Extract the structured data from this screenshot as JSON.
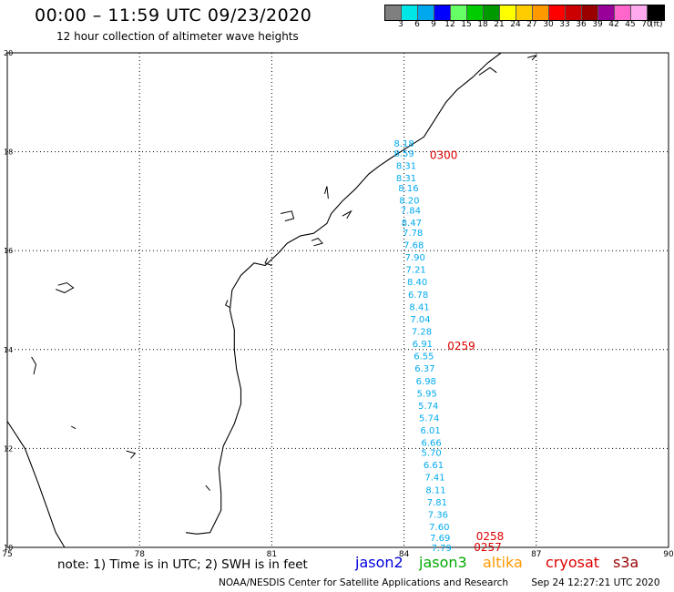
{
  "header": {
    "title": "00:00 – 11:59 UTC 09/23/2020",
    "subtitle": "12 hour collection of altimeter wave heights"
  },
  "legend": {
    "unit": "(ft)",
    "labels": [
      "3",
      "6",
      "9",
      "12",
      "15",
      "18",
      "21",
      "24",
      "27",
      "30",
      "33",
      "36",
      "39",
      "42",
      "45",
      "70"
    ],
    "colors": [
      "#7f7f7f",
      "#00e5e5",
      "#00a8f0",
      "#0000ff",
      "#66ff66",
      "#00cc00",
      "#009900",
      "#ffff00",
      "#ffcc00",
      "#ff9900",
      "#ff0000",
      "#cc0000",
      "#990000",
      "#990099",
      "#ff66cc",
      "#ffaaee",
      "#000000"
    ]
  },
  "map": {
    "lon_range": [
      75,
      90
    ],
    "lat_range": [
      10,
      20
    ],
    "lon_ticks": [
      "75",
      "78",
      "81",
      "84",
      "87",
      "90"
    ],
    "lat_ticks": [
      "20",
      "18",
      "16",
      "14",
      "12",
      "10"
    ],
    "grid": "dotted",
    "colors": {
      "coast": "#000000",
      "heights": "#00aaee",
      "times": "#dd0000",
      "grid": "#000000"
    },
    "coastline": [
      [
        86.2,
        20.0
      ],
      [
        85.9,
        19.8
      ],
      [
        85.55,
        19.5
      ],
      [
        85.2,
        19.25
      ],
      [
        84.95,
        19.0
      ],
      [
        84.7,
        18.65
      ],
      [
        84.45,
        18.3
      ],
      [
        84.1,
        18.1
      ],
      [
        83.75,
        17.9
      ],
      [
        83.45,
        17.72
      ],
      [
        83.2,
        17.55
      ],
      [
        82.9,
        17.25
      ],
      [
        82.6,
        17.0
      ],
      [
        82.35,
        16.75
      ],
      [
        82.25,
        16.55
      ],
      [
        81.95,
        16.35
      ],
      [
        81.65,
        16.3
      ],
      [
        81.35,
        16.15
      ],
      [
        81.15,
        15.95
      ],
      [
        80.85,
        15.7
      ],
      [
        80.6,
        15.75
      ],
      [
        80.3,
        15.5
      ],
      [
        80.1,
        15.2
      ],
      [
        80.05,
        14.8
      ],
      [
        80.15,
        14.4
      ],
      [
        80.15,
        14.0
      ],
      [
        80.2,
        13.6
      ],
      [
        80.3,
        13.2
      ],
      [
        80.3,
        12.9
      ],
      [
        80.15,
        12.5
      ],
      [
        79.9,
        12.05
      ],
      [
        79.8,
        11.6
      ],
      [
        79.85,
        11.1
      ],
      [
        79.85,
        10.75
      ],
      [
        79.6,
        10.3
      ],
      [
        79.3,
        10.27
      ],
      [
        79.05,
        10.3
      ]
    ],
    "west_coastline": [
      [
        75.0,
        12.55
      ],
      [
        75.4,
        12.0
      ],
      [
        75.7,
        11.3
      ],
      [
        75.9,
        10.8
      ],
      [
        76.1,
        10.3
      ],
      [
        76.3,
        10.0
      ]
    ],
    "islands": [
      [
        [
          76.15,
          15.3
        ],
        [
          76.35,
          15.35
        ],
        [
          76.5,
          15.25
        ],
        [
          76.3,
          15.15
        ],
        [
          76.1,
          15.22
        ]
      ],
      [
        [
          82.2,
          17.15
        ],
        [
          82.25,
          17.3
        ],
        [
          82.28,
          17.05
        ]
      ],
      [
        [
          81.2,
          16.75
        ],
        [
          81.45,
          16.8
        ],
        [
          81.5,
          16.65
        ],
        [
          81.3,
          16.6
        ]
      ],
      [
        [
          81.9,
          16.2
        ],
        [
          82.05,
          16.25
        ],
        [
          82.15,
          16.15
        ],
        [
          81.95,
          16.1
        ]
      ],
      [
        [
          82.6,
          16.7
        ],
        [
          82.8,
          16.8
        ],
        [
          82.7,
          16.65
        ]
      ],
      [
        [
          80.9,
          15.85
        ],
        [
          80.85,
          15.75
        ],
        [
          81.0,
          15.7
        ]
      ],
      [
        [
          80.0,
          15.0
        ],
        [
          79.95,
          14.9
        ],
        [
          80.05,
          14.85
        ]
      ],
      [
        [
          75.55,
          13.85
        ],
        [
          75.65,
          13.7
        ],
        [
          75.6,
          13.5
        ]
      ],
      [
        [
          77.7,
          11.95
        ],
        [
          77.9,
          11.9
        ],
        [
          77.8,
          11.8
        ]
      ],
      [
        [
          76.45,
          12.45
        ],
        [
          76.55,
          12.4
        ]
      ],
      [
        [
          79.5,
          11.25
        ],
        [
          79.6,
          11.15
        ]
      ],
      [
        [
          85.7,
          19.55
        ],
        [
          85.95,
          19.7
        ],
        [
          86.1,
          19.6
        ]
      ],
      [
        [
          86.8,
          19.9
        ],
        [
          87.0,
          19.95
        ],
        [
          86.9,
          19.85
        ]
      ]
    ]
  },
  "track": {
    "heights": [
      {
        "lon": 84.0,
        "lat": 18.1,
        "text": "8.18"
      },
      {
        "lon": 84.0,
        "lat": 17.9,
        "text": "8.59"
      },
      {
        "lon": 84.05,
        "lat": 17.65,
        "text": "8.31"
      },
      {
        "lon": 84.05,
        "lat": 17.4,
        "text": "8.31"
      },
      {
        "lon": 84.1,
        "lat": 17.2,
        "text": "8.16"
      },
      {
        "lon": 84.12,
        "lat": 16.95,
        "text": "8.20"
      },
      {
        "lon": 84.15,
        "lat": 16.75,
        "text": "7.84"
      },
      {
        "lon": 84.17,
        "lat": 16.5,
        "text": "8.47"
      },
      {
        "lon": 84.2,
        "lat": 16.3,
        "text": "7.78"
      },
      {
        "lon": 84.22,
        "lat": 16.05,
        "text": "7.68"
      },
      {
        "lon": 84.25,
        "lat": 15.8,
        "text": "7.90"
      },
      {
        "lon": 84.27,
        "lat": 15.55,
        "text": "7.21"
      },
      {
        "lon": 84.3,
        "lat": 15.3,
        "text": "8.40"
      },
      {
        "lon": 84.32,
        "lat": 15.05,
        "text": "6.78"
      },
      {
        "lon": 84.35,
        "lat": 14.8,
        "text": "8.41"
      },
      {
        "lon": 84.37,
        "lat": 14.55,
        "text": "7.04"
      },
      {
        "lon": 84.4,
        "lat": 14.3,
        "text": "7.28"
      },
      {
        "lon": 84.42,
        "lat": 14.05,
        "text": "6.91"
      },
      {
        "lon": 84.45,
        "lat": 13.8,
        "text": "6.55"
      },
      {
        "lon": 84.47,
        "lat": 13.55,
        "text": "6.37"
      },
      {
        "lon": 84.5,
        "lat": 13.3,
        "text": "6.98"
      },
      {
        "lon": 84.52,
        "lat": 13.05,
        "text": "5.95"
      },
      {
        "lon": 84.55,
        "lat": 12.8,
        "text": "5.74"
      },
      {
        "lon": 84.57,
        "lat": 12.55,
        "text": "5.74"
      },
      {
        "lon": 84.6,
        "lat": 12.3,
        "text": "6.01"
      },
      {
        "lon": 84.62,
        "lat": 12.05,
        "text": "6.66"
      },
      {
        "lon": 84.62,
        "lat": 11.85,
        "text": "5.70"
      },
      {
        "lon": 84.67,
        "lat": 11.6,
        "text": "6.61"
      },
      {
        "lon": 84.7,
        "lat": 11.35,
        "text": "7.41"
      },
      {
        "lon": 84.72,
        "lat": 11.1,
        "text": "8.11"
      },
      {
        "lon": 84.75,
        "lat": 10.85,
        "text": "7.81"
      },
      {
        "lon": 84.77,
        "lat": 10.6,
        "text": "7.36"
      },
      {
        "lon": 84.8,
        "lat": 10.35,
        "text": "7.60"
      },
      {
        "lon": 84.82,
        "lat": 10.13,
        "text": "7.69"
      },
      {
        "lon": 84.85,
        "lat": 9.93,
        "text": "7.79"
      }
    ],
    "times": [
      {
        "lon": 84.9,
        "lat": 17.85,
        "text": "0300"
      },
      {
        "lon": 85.3,
        "lat": 14.0,
        "text": "0259"
      },
      {
        "lon": 85.95,
        "lat": 10.15,
        "text": "0258"
      },
      {
        "lon": 85.9,
        "lat": 9.93,
        "text": "0257"
      }
    ]
  },
  "footer": {
    "note": "note: 1) Time is in UTC; 2) SWH is in feet",
    "satellites": [
      {
        "name": "jason2",
        "color": "#0000dd"
      },
      {
        "name": "jason3",
        "color": "#00aa00"
      },
      {
        "name": "altika",
        "color": "#ff9900"
      },
      {
        "name": "cryosat",
        "color": "#dd0000"
      },
      {
        "name": "s3a",
        "color": "#990000"
      }
    ],
    "credit": "NOAA/NESDIS Center for Satellite Applications and Research",
    "timestamp": "Sep 24 12:27:21 UTC 2020"
  }
}
